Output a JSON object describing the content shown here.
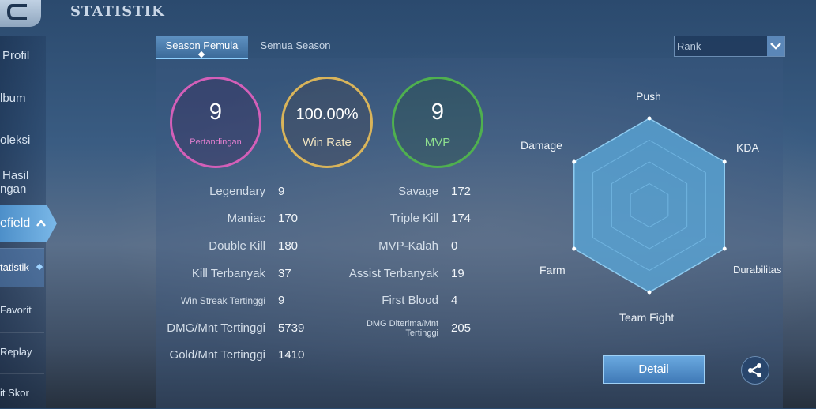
{
  "header": {
    "title": "STATISTIK"
  },
  "sidebar": {
    "items": [
      {
        "label": "Profil"
      },
      {
        "label": "lbum"
      },
      {
        "label": "oleksi"
      },
      {
        "label_line1": "Hasil",
        "label_line2": "ngan"
      },
      {
        "label": "efield"
      }
    ],
    "sub_items": [
      {
        "label": "tatistik"
      },
      {
        "label": "Favorit"
      },
      {
        "label": "Replay"
      },
      {
        "label": "it Skor"
      }
    ]
  },
  "tabs": [
    {
      "label": "Season Pemula"
    },
    {
      "label": "Semua Season"
    }
  ],
  "rank_select": {
    "value": "Rank"
  },
  "summary": {
    "matches": {
      "value": "9",
      "label": "Pertandingan"
    },
    "win_rate": {
      "value": "100.00%",
      "label": "Win Rate"
    },
    "mvp": {
      "value": "9",
      "label": "MVP"
    }
  },
  "stats_left": [
    {
      "label": "Legendary",
      "value": "9"
    },
    {
      "label": "Maniac",
      "value": "170"
    },
    {
      "label": "Double Kill",
      "value": "180"
    },
    {
      "label": "Kill Terbanyak",
      "value": "37"
    },
    {
      "label": "Win Streak Tertinggi",
      "value": "9"
    },
    {
      "label": "DMG/Mnt Tertinggi",
      "value": "5739"
    },
    {
      "label": "Gold/Mnt Tertinggi",
      "value": "1410"
    }
  ],
  "stats_right": [
    {
      "label": "Savage",
      "value": "172"
    },
    {
      "label": "Triple Kill",
      "value": "174"
    },
    {
      "label": "MVP-Kalah",
      "value": "0"
    },
    {
      "label": "Assist Terbanyak",
      "value": "19"
    },
    {
      "label": "First Blood",
      "value": "4"
    },
    {
      "label_line1": "DMG Diterima/Mnt",
      "label_line2": "Tertinggi",
      "value": "205"
    }
  ],
  "radar": {
    "axes": [
      "Push",
      "KDA",
      "Durabilitas",
      "Team Fight",
      "Farm",
      "Damage"
    ],
    "values": [
      1,
      1,
      1,
      1,
      1,
      1
    ],
    "fill_color": "#5aa6d6",
    "line_color": "#8ecbf0"
  },
  "buttons": {
    "detail": "Detail"
  },
  "icons": {
    "back": "back-arrow-icon",
    "share": "share-icon",
    "dropdown": "chevron-down-icon"
  }
}
